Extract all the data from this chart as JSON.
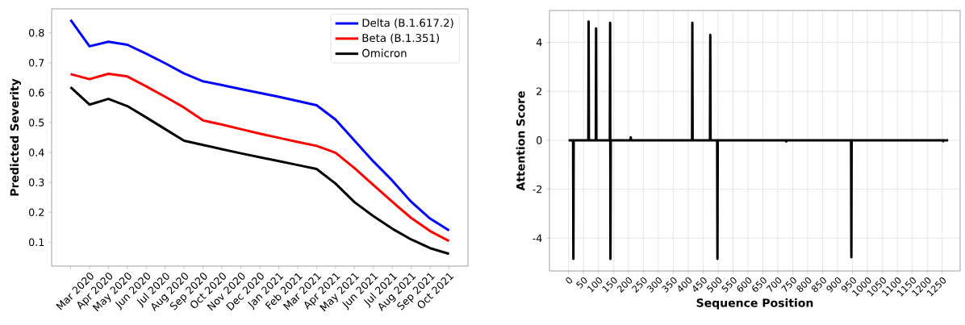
{
  "chart_data": [
    {
      "type": "line",
      "ylabel": "Predicted Severity",
      "categories": [
        null,
        "Mar 2020",
        "Apr 2020",
        "May 2020",
        "Jun 2020",
        "Jul 2020",
        "Aug 2020",
        "Sep 2020",
        "Oct 2020",
        "Nov 2020",
        "Dec 2020",
        "Jan 2021",
        "Feb 2021",
        "Mar 2021",
        "Apr 2021",
        "May 2021",
        "Jun 2021",
        "Jul 2021",
        "Aug 2021",
        "Sep 2021",
        "Oct 2021"
      ],
      "series": [
        {
          "name": "Delta (B.1.617.2)",
          "color": "#0000ff",
          "values": [
            0.843,
            0.755,
            0.77,
            0.76,
            0.73,
            0.698,
            0.664,
            0.638,
            0.625,
            0.612,
            0.599,
            0.586,
            0.572,
            0.558,
            0.51,
            0.44,
            0.37,
            0.306,
            0.235,
            0.179,
            0.139
          ]
        },
        {
          "name": "Beta (B.1.351)",
          "color": "#ff0000",
          "values": [
            0.662,
            0.645,
            0.663,
            0.654,
            0.621,
            0.586,
            0.55,
            0.507,
            0.493,
            0.478,
            0.463,
            0.449,
            0.435,
            0.422,
            0.399,
            0.348,
            0.291,
            0.235,
            0.181,
            0.137,
            0.104
          ]
        },
        {
          "name": "Omicron",
          "color": "#000000",
          "values": [
            0.618,
            0.56,
            0.579,
            0.555,
            0.517,
            0.478,
            0.439,
            0.425,
            0.411,
            0.397,
            0.384,
            0.371,
            0.358,
            0.345,
            0.296,
            0.234,
            0.187,
            0.145,
            0.109,
            0.08,
            0.061
          ]
        }
      ],
      "ylim": [
        0.02,
        0.88
      ],
      "yticks": [
        0.1,
        0.2,
        0.3,
        0.4,
        0.5,
        0.6,
        0.7,
        0.8
      ],
      "legend": "top right",
      "grid": false
    },
    {
      "type": "line",
      "xlabel": "Sequence Position",
      "ylabel": "Attention Score",
      "series": [
        {
          "color": "#000000",
          "x": [
            0,
            15,
            16,
            17,
            66,
            67,
            68,
            91,
            92,
            93,
            138,
            139,
            140,
            141,
            207,
            208,
            209,
            413,
            414,
            415,
            473,
            474,
            475,
            497,
            498,
            499,
            727,
            728,
            729,
            945,
            946,
            947,
            1252,
            1253,
            1254,
            1270
          ],
          "values": [
            0,
            0,
            -4.85,
            0,
            0,
            4.85,
            0,
            0,
            4.57,
            0,
            0,
            4.8,
            -4.85,
            0,
            0,
            0.12,
            0,
            0,
            4.8,
            0,
            0,
            4.3,
            0,
            0,
            -4.85,
            0,
            0,
            -0.05,
            0,
            0,
            -4.78,
            0,
            0,
            -0.04,
            0,
            0
          ]
        }
      ],
      "xlim": [
        -64,
        1310
      ],
      "ylim": [
        -5.34,
        5.3
      ],
      "xticks": [
        0,
        50,
        100,
        150,
        200,
        250,
        300,
        350,
        400,
        450,
        500,
        550,
        600,
        650,
        700,
        750,
        800,
        850,
        900,
        950,
        1000,
        1050,
        1100,
        1150,
        1200,
        1250
      ],
      "yticks": [
        -4,
        -2,
        0,
        2,
        4
      ],
      "grid": true
    }
  ]
}
